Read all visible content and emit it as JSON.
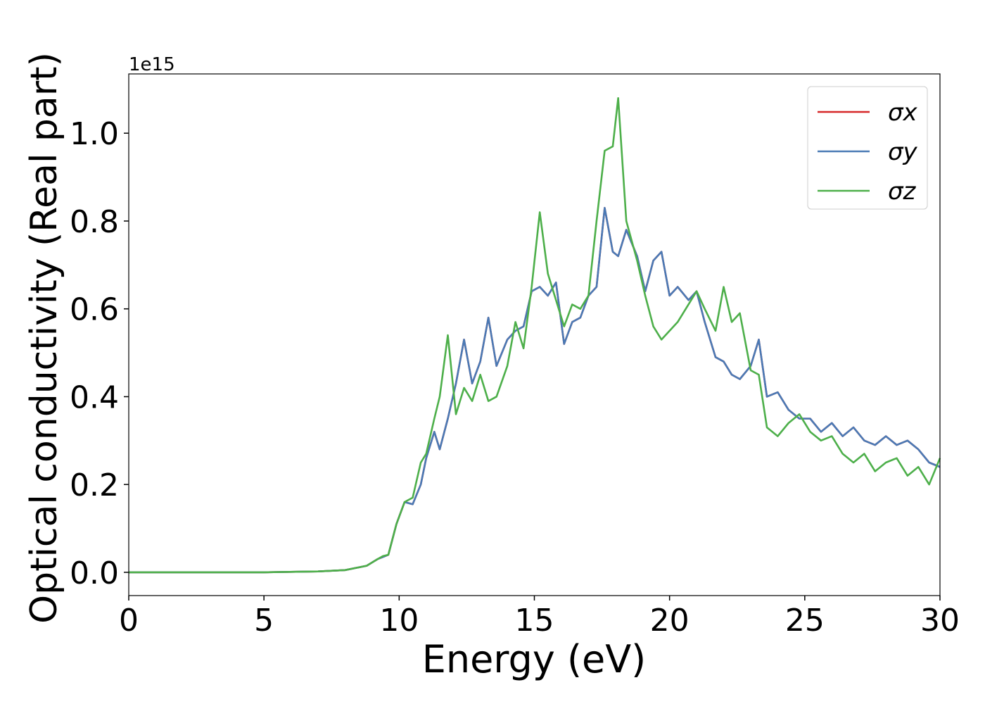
{
  "chart_data": {
    "type": "line",
    "x_label": "Energy (eV)",
    "y_label": "Optical conductivity (Real part)",
    "offset_text": "1e15",
    "xlim": [
      0,
      30
    ],
    "ylim": [
      -0.053,
      1.135
    ],
    "xticks": [
      0,
      5,
      10,
      15,
      20,
      25,
      30
    ],
    "yticks": [
      {
        "value": 0,
        "label": "0.0"
      },
      0.2,
      0.4,
      0.6,
      0.8,
      {
        "value": 1,
        "label": "1.0"
      }
    ],
    "legend": "upper right",
    "x": [
      0,
      5,
      7,
      8,
      8.8,
      9.2,
      9.4,
      9.6,
      9.9,
      10.2,
      10.5,
      10.8,
      11.0,
      11.3,
      11.5,
      11.8,
      12.1,
      12.4,
      12.7,
      13.0,
      13.3,
      13.6,
      14.0,
      14.3,
      14.6,
      14.9,
      15.2,
      15.5,
      15.8,
      16.1,
      16.4,
      16.7,
      17.0,
      17.3,
      17.6,
      17.9,
      18.1,
      18.4,
      18.8,
      19.1,
      19.4,
      19.7,
      20.0,
      20.3,
      20.7,
      21.0,
      21.3,
      21.7,
      22.0,
      22.3,
      22.6,
      23.0,
      23.3,
      23.6,
      24.0,
      24.4,
      24.8,
      25.2,
      25.6,
      26.0,
      26.4,
      26.8,
      27.2,
      27.6,
      28.0,
      28.4,
      28.8,
      29.2,
      29.6,
      30.0
    ],
    "series": [
      {
        "name": "σx",
        "color": "#d62728",
        "values": [
          0,
          0,
          0.002,
          0.005,
          0.015,
          0.03,
          0.035,
          0.04,
          0.11,
          0.16,
          0.155,
          0.2,
          0.26,
          0.32,
          0.28,
          0.35,
          0.43,
          0.53,
          0.43,
          0.48,
          0.58,
          0.47,
          0.53,
          0.55,
          0.56,
          0.64,
          0.65,
          0.63,
          0.66,
          0.52,
          0.57,
          0.58,
          0.63,
          0.65,
          0.83,
          0.73,
          0.72,
          0.78,
          0.72,
          0.64,
          0.71,
          0.73,
          0.63,
          0.65,
          0.62,
          0.64,
          0.57,
          0.49,
          0.48,
          0.45,
          0.44,
          0.47,
          0.53,
          0.4,
          0.41,
          0.37,
          0.35,
          0.35,
          0.32,
          0.34,
          0.31,
          0.33,
          0.3,
          0.29,
          0.31,
          0.29,
          0.3,
          0.28,
          0.25,
          0.24
        ]
      },
      {
        "name": "σy",
        "color": "#4a7ab5",
        "values": [
          0,
          0,
          0.002,
          0.005,
          0.015,
          0.03,
          0.035,
          0.04,
          0.11,
          0.16,
          0.155,
          0.2,
          0.26,
          0.32,
          0.28,
          0.35,
          0.43,
          0.53,
          0.43,
          0.48,
          0.58,
          0.47,
          0.53,
          0.55,
          0.56,
          0.64,
          0.65,
          0.63,
          0.66,
          0.52,
          0.57,
          0.58,
          0.63,
          0.65,
          0.83,
          0.73,
          0.72,
          0.78,
          0.72,
          0.64,
          0.71,
          0.73,
          0.63,
          0.65,
          0.62,
          0.64,
          0.57,
          0.49,
          0.48,
          0.45,
          0.44,
          0.47,
          0.53,
          0.4,
          0.41,
          0.37,
          0.35,
          0.35,
          0.32,
          0.34,
          0.31,
          0.33,
          0.3,
          0.29,
          0.31,
          0.29,
          0.3,
          0.28,
          0.25,
          0.24
        ]
      },
      {
        "name": "σz",
        "color": "#4daf4a",
        "values": [
          0,
          0,
          0.002,
          0.005,
          0.015,
          0.03,
          0.037,
          0.04,
          0.11,
          0.16,
          0.17,
          0.25,
          0.27,
          0.35,
          0.4,
          0.54,
          0.36,
          0.42,
          0.39,
          0.45,
          0.39,
          0.4,
          0.47,
          0.57,
          0.51,
          0.65,
          0.82,
          0.68,
          0.62,
          0.56,
          0.61,
          0.6,
          0.63,
          0.8,
          0.96,
          0.97,
          1.08,
          0.8,
          0.71,
          0.63,
          0.56,
          0.53,
          0.55,
          0.57,
          0.61,
          0.64,
          0.6,
          0.55,
          0.65,
          0.57,
          0.59,
          0.46,
          0.45,
          0.33,
          0.31,
          0.34,
          0.36,
          0.32,
          0.3,
          0.31,
          0.27,
          0.25,
          0.27,
          0.23,
          0.25,
          0.26,
          0.22,
          0.24,
          0.2,
          0.26
        ]
      }
    ]
  }
}
